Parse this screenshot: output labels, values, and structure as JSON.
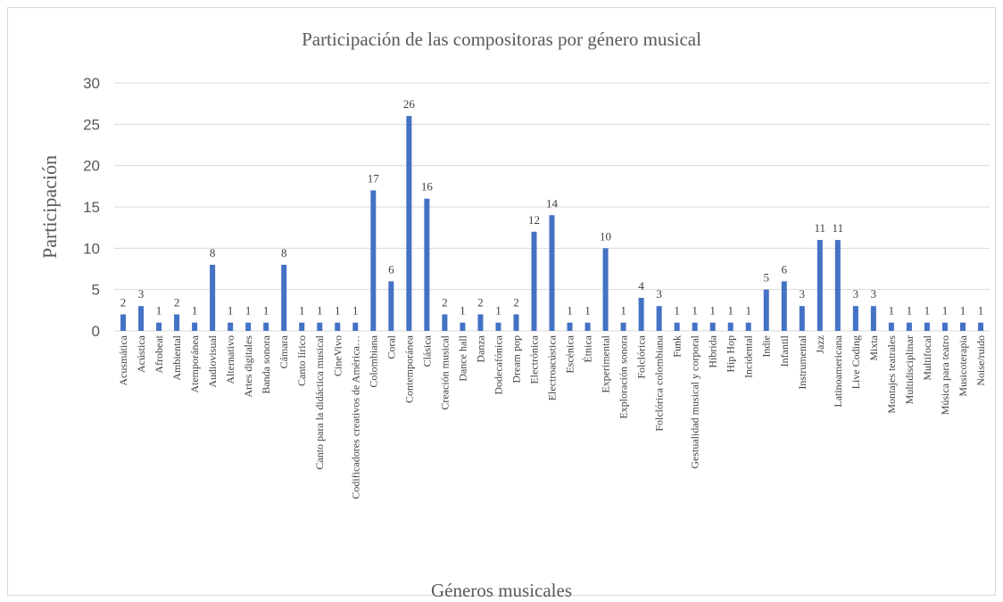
{
  "chart_data": {
    "type": "bar",
    "title": "Participación de las compositoras por género musical",
    "xlabel": "Géneros musicales",
    "ylabel": "Participación",
    "ylim": [
      0,
      30
    ],
    "yticks": [
      "0",
      "5",
      "10",
      "15",
      "20",
      "25",
      "30"
    ],
    "grid": true,
    "legend": "none",
    "bar_color": "#4472c4",
    "categories": [
      "Acusmática",
      "Acústica",
      "Afrobeat",
      "Ambiental",
      "Atemporánea",
      "Audiovisual",
      "Alternativo",
      "Artes digitales",
      "Banda sonora",
      "Cámara",
      "Canto lírico",
      "Canto para la didáctica musical",
      "CineVivo",
      "Codificadores creativos de América…",
      "Colombiana",
      "Coral",
      "Contemporánea",
      "Clásica",
      "Creación musical",
      "Dance hall",
      "Danza",
      "Dodecafónica",
      "Dream pop",
      "Electrónica",
      "Electroacústica",
      "Escénica",
      "Étnica",
      "Experimental",
      "Exploración sonora",
      "Folclórica",
      "Folclórica colombiana",
      "Funk",
      "Gestualidad musical y corporal",
      "Híbrida",
      "Hip Hop",
      "Incidental",
      "Indie",
      "Infantil",
      "Instrumental",
      "Jazz",
      "Latinoamericana",
      "Live Coding",
      "Mixta",
      "Montajes teatrales",
      "Multidisciplinar",
      "Multifocal",
      "Música para teatro",
      "Musicoterapia",
      "Noise/ruido"
    ],
    "values": [
      2,
      3,
      1,
      2,
      1,
      8,
      1,
      1,
      1,
      8,
      1,
      1,
      1,
      1,
      17,
      6,
      26,
      16,
      2,
      1,
      2,
      1,
      2,
      12,
      14,
      1,
      1,
      10,
      1,
      4,
      3,
      1,
      1,
      1,
      1,
      1,
      5,
      6,
      3,
      11,
      11,
      3,
      3,
      1,
      1,
      1,
      1,
      1,
      1
    ]
  }
}
